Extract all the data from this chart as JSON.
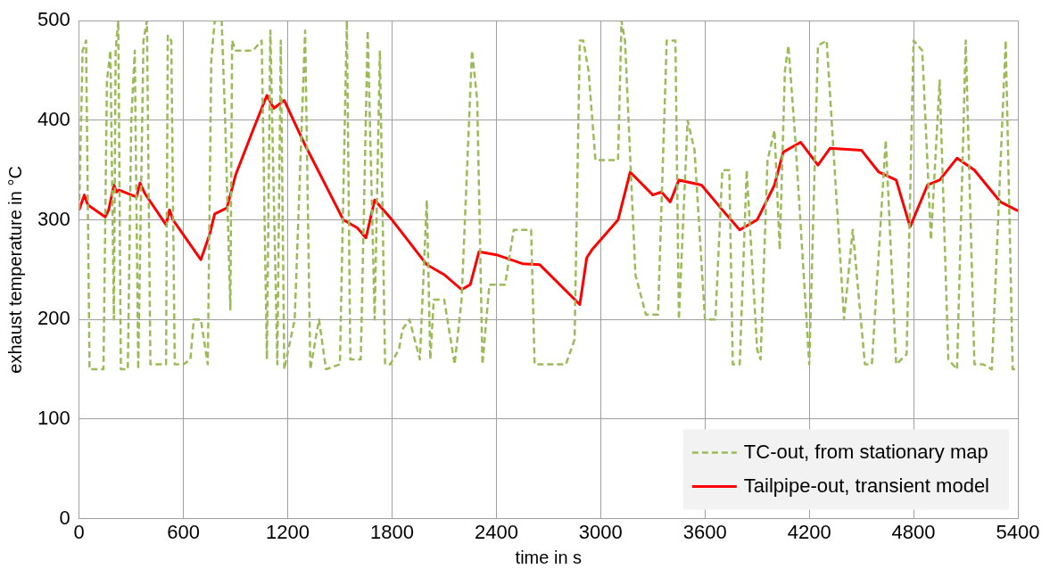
{
  "chart_data": {
    "type": "line",
    "xlabel": "time in s",
    "ylabel": "exhaust temperature in °C",
    "xlim": [
      0,
      5400
    ],
    "xticks": [
      0,
      600,
      1200,
      1800,
      2400,
      3000,
      3600,
      4200,
      4800,
      5400
    ],
    "ylim": [
      0,
      500
    ],
    "yticks": [
      0,
      100,
      200,
      300,
      400,
      500
    ],
    "grid": true,
    "legend": "bottom right",
    "marker": "none",
    "series": [
      {
        "name": "TC-out, from stationary map",
        "color": "#9bbb59",
        "line_style": "dashed",
        "x": [
          0,
          20,
          40,
          60,
          100,
          140,
          160,
          180,
          200,
          210,
          225,
          240,
          280,
          300,
          320,
          340,
          370,
          390,
          410,
          450,
          500,
          510,
          530,
          550,
          600,
          640,
          660,
          700,
          740,
          760,
          780,
          820,
          840,
          870,
          880,
          900,
          950,
          1000,
          1050,
          1080,
          1100,
          1140,
          1160,
          1180,
          1240,
          1300,
          1330,
          1380,
          1420,
          1500,
          1540,
          1560,
          1620,
          1660,
          1700,
          1730,
          1760,
          1790,
          1840,
          1860,
          1900,
          1960,
          2000,
          2020,
          2040,
          2100,
          2160,
          2200,
          2260,
          2290,
          2320,
          2360,
          2450,
          2500,
          2600,
          2620,
          2800,
          2850,
          2880,
          2900,
          2930,
          2970,
          3100,
          3120,
          3140,
          3200,
          3260,
          3330,
          3380,
          3430,
          3450,
          3500,
          3540,
          3600,
          3660,
          3700,
          3740,
          3760,
          3800,
          3840,
          3900,
          3920,
          3960,
          4000,
          4030,
          4060,
          4080,
          4120,
          4200,
          4250,
          4300,
          4350,
          4400,
          4450,
          4520,
          4560,
          4640,
          4700,
          4760,
          4800,
          4850,
          4900,
          4950,
          5000,
          5050,
          5100,
          5150,
          5200,
          5250,
          5330,
          5370,
          5400
        ],
        "values": [
          310,
          470,
          480,
          150,
          150,
          150,
          440,
          470,
          200,
          470,
          500,
          150,
          150,
          400,
          470,
          150,
          480,
          500,
          155,
          155,
          155,
          485,
          480,
          155,
          155,
          160,
          200,
          200,
          155,
          460,
          500,
          500,
          400,
          210,
          480,
          470,
          470,
          470,
          480,
          160,
          490,
          155,
          480,
          150,
          200,
          490,
          150,
          200,
          150,
          155,
          500,
          160,
          160,
          490,
          200,
          470,
          155,
          155,
          170,
          190,
          200,
          160,
          320,
          160,
          220,
          220,
          155,
          220,
          470,
          420,
          155,
          235,
          235,
          290,
          290,
          155,
          155,
          180,
          480,
          480,
          450,
          360,
          360,
          500,
          480,
          245,
          205,
          205,
          480,
          480,
          200,
          400,
          370,
          200,
          200,
          350,
          350,
          155,
          155,
          350,
          170,
          160,
          360,
          390,
          270,
          450,
          475,
          380,
          155,
          475,
          480,
          340,
          200,
          290,
          155,
          155,
          380,
          155,
          165,
          480,
          470,
          280,
          440,
          160,
          150,
          480,
          155,
          155,
          150,
          480,
          150,
          150
        ]
      },
      {
        "name": "Tailpipe-out, transient model",
        "color": "#ff0000",
        "line_style": "solid",
        "x": [
          0,
          30,
          50,
          150,
          170,
          200,
          215,
          230,
          330,
          350,
          380,
          500,
          520,
          540,
          700,
          750,
          780,
          850,
          900,
          1000,
          1080,
          1120,
          1180,
          1300,
          1350,
          1520,
          1600,
          1650,
          1700,
          1800,
          2000,
          2100,
          2200,
          2250,
          2300,
          2400,
          2550,
          2650,
          2880,
          2920,
          2950,
          3100,
          3170,
          3300,
          3350,
          3400,
          3450,
          3580,
          3700,
          3800,
          3900,
          4000,
          4050,
          4150,
          4250,
          4320,
          4500,
          4600,
          4700,
          4780,
          4880,
          4950,
          5050,
          5150,
          5300,
          5400
        ],
        "values": [
          310,
          325,
          315,
          303,
          310,
          335,
          328,
          330,
          323,
          337,
          326,
          295,
          310,
          300,
          260,
          285,
          306,
          312,
          345,
          390,
          425,
          412,
          420,
          375,
          358,
          300,
          292,
          282,
          320,
          300,
          255,
          245,
          230,
          235,
          268,
          265,
          256,
          255,
          215,
          262,
          270,
          300,
          348,
          325,
          328,
          318,
          340,
          335,
          310,
          290,
          300,
          335,
          368,
          378,
          355,
          372,
          370,
          348,
          340,
          293,
          335,
          340,
          362,
          350,
          318,
          309
        ]
      }
    ]
  }
}
